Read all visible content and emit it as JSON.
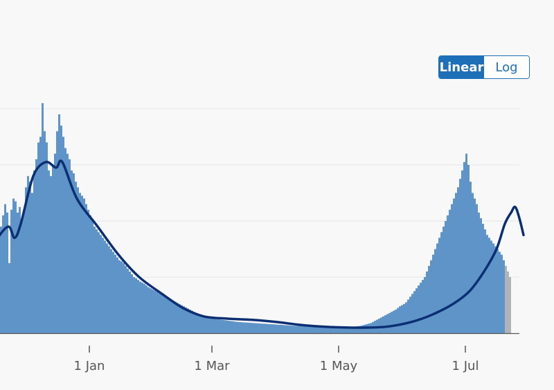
{
  "toggle": {
    "linear_label": "Linear",
    "log_label": "Log",
    "selected": "Linear"
  },
  "colors": {
    "bar": "#5f94c8",
    "bar_incomplete": "#b1b4b6",
    "average_line": "#0b2f72",
    "grid": "#e6e6e6",
    "axis": "#555555"
  },
  "chart_data": {
    "type": "bar",
    "title": "",
    "xlabel": "",
    "ylabel": "",
    "y_ticks_labelled": false,
    "ylim": [
      0,
      4000
    ],
    "grid_values": [
      1000,
      2000,
      3000,
      4000
    ],
    "grid": true,
    "x_tick_labels": [
      {
        "label": "1 Jan",
        "date": "2021-01-01"
      },
      {
        "label": "1 Mar",
        "date": "2021-03-01"
      },
      {
        "label": "1 May",
        "date": "2021-05-01"
      },
      {
        "label": "1 Jul",
        "date": "2021-07-01"
      }
    ],
    "x_range": [
      "2020-10-20",
      "2021-07-27"
    ],
    "series": [
      {
        "kind": "bars",
        "date_step_days": 1,
        "start_date": "2020-10-20",
        "values": [
          1050,
          900,
          1080,
          950,
          1100,
          1030,
          980,
          1060,
          1020,
          940,
          1120,
          1050,
          1090,
          1000,
          1150,
          1200,
          1100,
          1250,
          1350,
          1300,
          1400,
          1450,
          1500,
          1380,
          1700,
          1800,
          1750,
          1850,
          1600,
          1950,
          1900,
          2100,
          2300,
          2150,
          1250,
          2200,
          2400,
          2350,
          2150,
          2250,
          2000,
          2200,
          2600,
          2800,
          2700,
          2500,
          2900,
          3100,
          3400,
          3500,
          4100,
          3600,
          3400,
          2900,
          2800,
          3000,
          3200,
          3600,
          3900,
          3700,
          3500,
          3300,
          3200,
          3100,
          2900,
          2850,
          2700,
          2600,
          2500,
          2450,
          2400,
          2300,
          2200,
          2100,
          2000,
          1900,
          1850,
          1800,
          1750,
          1700,
          1650,
          1600,
          1550,
          1500,
          1450,
          1400,
          1350,
          1300,
          1280,
          1250,
          1200,
          1150,
          1100,
          1050,
          1000,
          980,
          950,
          920,
          900,
          880,
          850,
          820,
          800,
          780,
          760,
          740,
          720,
          700,
          680,
          660,
          640,
          620,
          600,
          580,
          560,
          540,
          520,
          500,
          480,
          460,
          440,
          420,
          400,
          380,
          360,
          340,
          320,
          310,
          300,
          290,
          280,
          270,
          260,
          255,
          250,
          245,
          240,
          235,
          230,
          225,
          220,
          215,
          210,
          205,
          200,
          198,
          195,
          192,
          190,
          188,
          185,
          182,
          180,
          178,
          175,
          172,
          170,
          168,
          165,
          162,
          160,
          158,
          155,
          152,
          150,
          148,
          145,
          142,
          140,
          138,
          135,
          132,
          130,
          128,
          126,
          124,
          122,
          120,
          118,
          116,
          114,
          112,
          110,
          108,
          106,
          104,
          102,
          100,
          100,
          100,
          100,
          100,
          100,
          102,
          104,
          106,
          108,
          110,
          112,
          115,
          118,
          120,
          125,
          130,
          140,
          150,
          160,
          170,
          180,
          200,
          220,
          240,
          260,
          280,
          300,
          320,
          340,
          360,
          380,
          400,
          420,
          450,
          480,
          500,
          520,
          550,
          600,
          650,
          700,
          750,
          800,
          850,
          900,
          950,
          1000,
          1100,
          1200,
          1300,
          1400,
          1500,
          1600,
          1700,
          1800,
          1900,
          2000,
          2100,
          2200,
          2300,
          2400,
          2500,
          2600,
          2750,
          2900,
          3050,
          3200,
          3000,
          2700,
          2500,
          2400,
          2300,
          2150,
          2050,
          1950,
          1850,
          1750,
          1700,
          1650,
          1600,
          1550,
          1500,
          1450,
          1400,
          1300,
          1200,
          1100,
          1000
        ],
        "incomplete_last_n": 3
      },
      {
        "kind": "line",
        "name": "",
        "points": [
          [
            "2020-10-20",
            750
          ],
          [
            "2020-10-27",
            700
          ],
          [
            "2020-11-03",
            820
          ],
          [
            "2020-11-10",
            1200
          ],
          [
            "2020-11-17",
            1650
          ],
          [
            "2020-11-23",
            1900
          ],
          [
            "2020-11-26",
            1700
          ],
          [
            "2020-11-29",
            1950
          ],
          [
            "2020-12-05",
            2800
          ],
          [
            "2020-12-11",
            3050
          ],
          [
            "2020-12-16",
            2950
          ],
          [
            "2020-12-19",
            3050
          ],
          [
            "2020-12-26",
            2400
          ],
          [
            "2021-01-05",
            1900
          ],
          [
            "2021-01-15",
            1400
          ],
          [
            "2021-01-25",
            1000
          ],
          [
            "2021-02-05",
            700
          ],
          [
            "2021-02-15",
            450
          ],
          [
            "2021-02-25",
            300
          ],
          [
            "2021-03-08",
            260
          ],
          [
            "2021-03-20",
            240
          ],
          [
            "2021-04-01",
            200
          ],
          [
            "2021-04-15",
            140
          ],
          [
            "2021-05-01",
            105
          ],
          [
            "2021-05-15",
            100
          ],
          [
            "2021-05-25",
            120
          ],
          [
            "2021-06-05",
            200
          ],
          [
            "2021-06-15",
            330
          ],
          [
            "2021-06-25",
            520
          ],
          [
            "2021-07-03",
            750
          ],
          [
            "2021-07-10",
            1100
          ],
          [
            "2021-07-16",
            1500
          ],
          [
            "2021-07-20",
            1950
          ],
          [
            "2021-07-23",
            2150
          ],
          [
            "2021-07-25",
            2250
          ],
          [
            "2021-07-27",
            2050
          ],
          [
            "2021-07-29",
            1750
          ]
        ]
      }
    ]
  }
}
